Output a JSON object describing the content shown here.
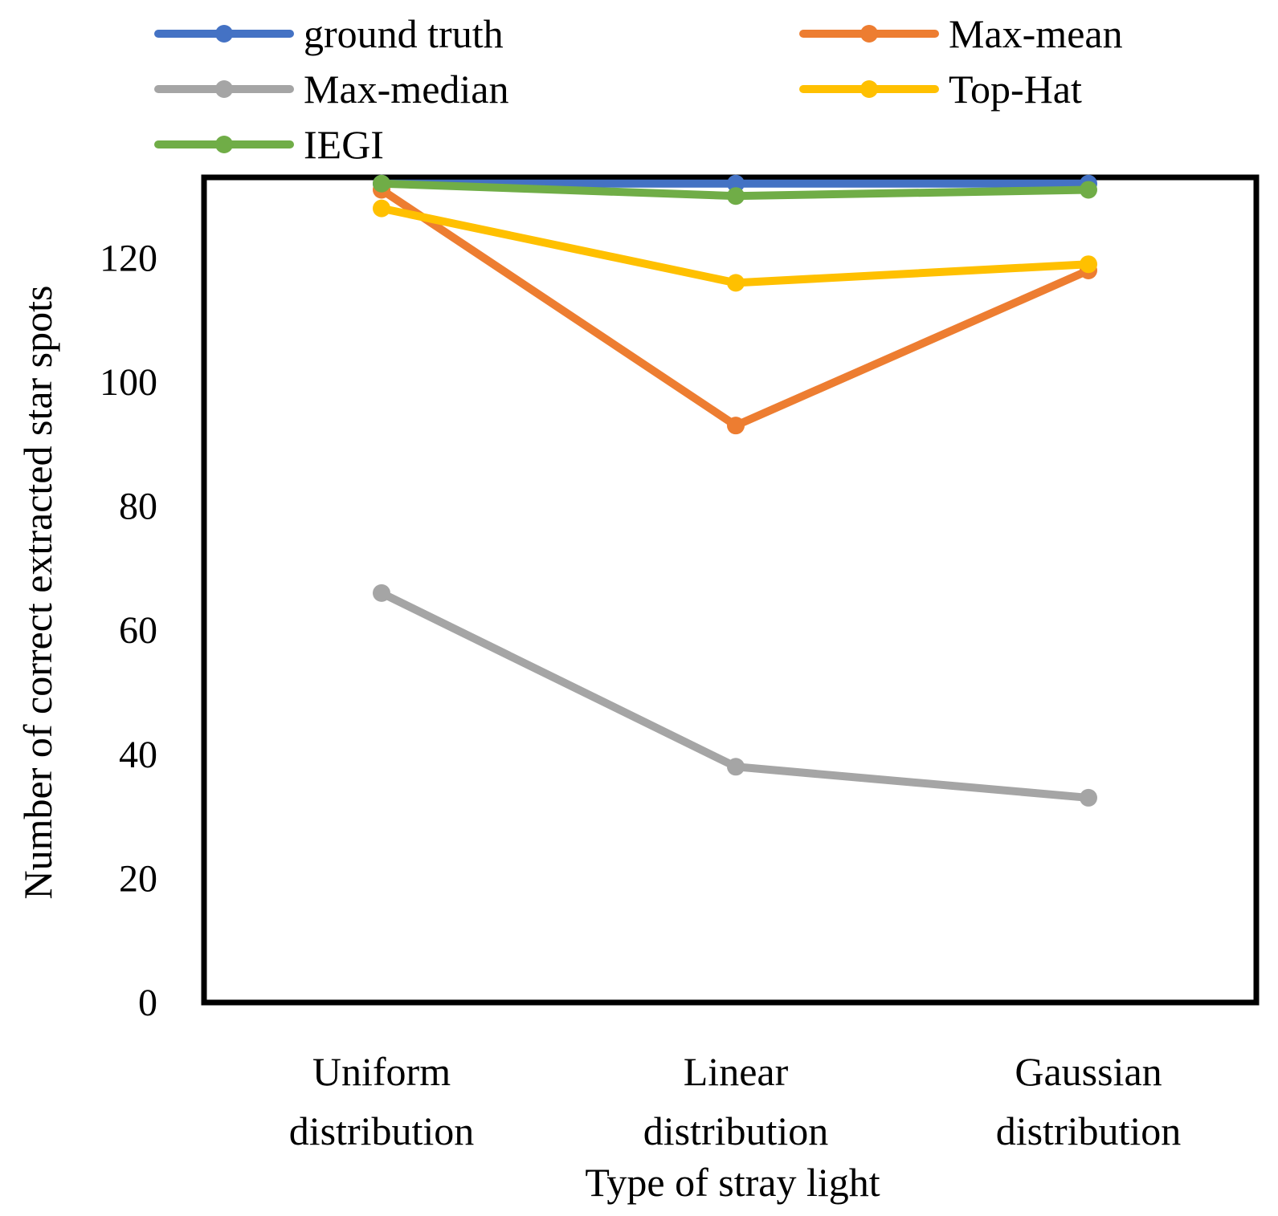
{
  "chart_data": {
    "type": "line",
    "title": "",
    "xlabel": "Type of stray light",
    "ylabel": "Number of correct extracted star spots",
    "categories": [
      [
        "Uniform",
        "distribution"
      ],
      [
        "Linear",
        "distribution"
      ],
      [
        "Gaussian",
        "distribution"
      ]
    ],
    "ylim": [
      0,
      133
    ],
    "yticks": [
      0,
      20,
      40,
      60,
      80,
      100,
      120
    ],
    "grid": false,
    "legend_position": "top",
    "series": [
      {
        "name": "ground truth",
        "color": "#4472C4",
        "values": [
          132,
          132,
          132
        ]
      },
      {
        "name": "Max-mean",
        "color": "#ED7D31",
        "values": [
          131,
          93,
          118
        ]
      },
      {
        "name": "Max-median",
        "color": "#A5A5A5",
        "values": [
          66,
          38,
          33
        ]
      },
      {
        "name": "Top-Hat",
        "color": "#FFC000",
        "values": [
          128,
          116,
          119
        ]
      },
      {
        "name": "IEGI",
        "color": "#70AD47",
        "values": [
          132,
          130,
          131
        ]
      }
    ]
  }
}
